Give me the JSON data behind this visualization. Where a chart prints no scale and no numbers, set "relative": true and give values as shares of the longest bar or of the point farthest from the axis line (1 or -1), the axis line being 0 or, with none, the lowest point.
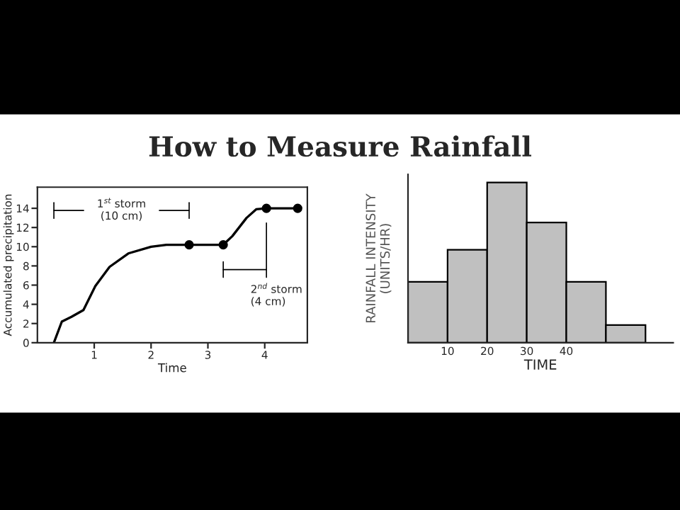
{
  "chart_data": [
    {
      "type": "line",
      "title": "How to Measure Rainfall",
      "xlabel": "Time",
      "ylabel": "Accumulated precipitation",
      "xlim": [
        0,
        4.75
      ],
      "xticks": [
        1,
        2,
        3,
        4
      ],
      "ylim": [
        0,
        16.2
      ],
      "yticks": [
        0,
        2,
        4,
        6,
        8,
        10,
        12,
        14
      ],
      "grid": false,
      "legend": false,
      "series": [
        {
          "type": "line",
          "color": "#000000",
          "marker": "none",
          "x": [
            0.29,
            0.43,
            0.6,
            0.81,
            1.02,
            1.27,
            1.6,
            2.0,
            2.27,
            2.67,
            3.27,
            3.43,
            3.68,
            3.85,
            4.03,
            4.58
          ],
          "values": [
            0,
            2.2,
            2.7,
            3.4,
            5.9,
            7.9,
            9.3,
            10.0,
            10.2,
            10.2,
            10.2,
            11.1,
            13.0,
            13.9,
            14,
            14
          ]
        },
        {
          "type": "scatter",
          "color": "#000000",
          "marker": "circle",
          "x": [
            2.67,
            3.27,
            4.03,
            4.58
          ],
          "values": [
            10.2,
            10.2,
            14,
            14
          ]
        }
      ],
      "annotations": [
        "1$^{st}$ storm\n(10 cm)",
        "2$^{nd}$ storm\n(4 cm)"
      ]
    },
    {
      "type": "bar",
      "xlabel": "TIME",
      "ylabel": "RAINFALL INTENSITY\n(UNITS/HR)",
      "relative": true,
      "tick_labels": "x",
      "x": [
        5,
        15,
        25,
        35,
        45,
        55
      ],
      "values": [
        0.38,
        0.58,
        1,
        0.75,
        0.38,
        0.11
      ],
      "color": "#c0c0c0",
      "xlim": [
        0,
        67
      ],
      "xticks": [
        10,
        20,
        30,
        40
      ],
      "grid": false
    }
  ]
}
